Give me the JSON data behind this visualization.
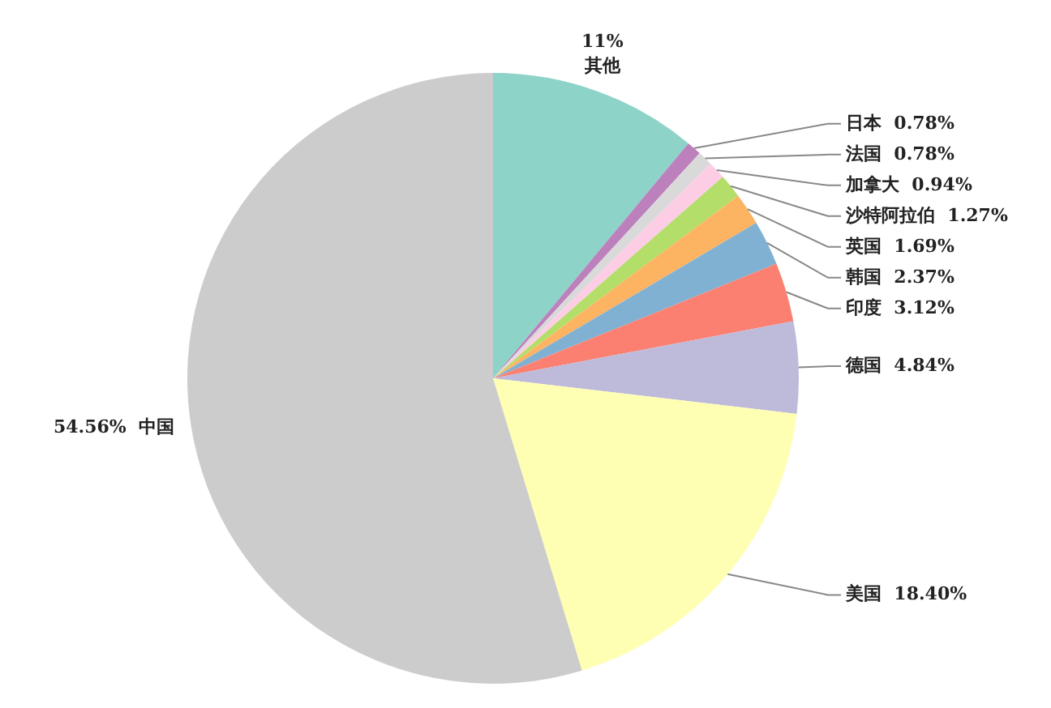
{
  "chart_data": {
    "type": "pie",
    "categories": [
      "其他",
      "日本",
      "法国",
      "加拿大",
      "沙特阿拉伯",
      "英国",
      "韩国",
      "印度",
      "德国",
      "美国",
      "中国"
    ],
    "values": [
      11,
      0.78,
      0.78,
      0.94,
      1.27,
      1.69,
      2.37,
      3.12,
      4.84,
      18.4,
      54.56
    ],
    "value_labels": [
      "11%",
      "0.78%",
      "0.78%",
      "0.94%",
      "1.27%",
      "1.69%",
      "2.37%",
      "3.12%",
      "4.84%",
      "18.40%",
      "54.56%"
    ],
    "colors": [
      "#8dd3c7",
      "#bc80bd",
      "#d9d9d9",
      "#fccde5",
      "#b3de69",
      "#fdb462",
      "#80b1d3",
      "#fb8072",
      "#bebada",
      "#ffffb3",
      "#cccccc"
    ],
    "legend": false
  }
}
